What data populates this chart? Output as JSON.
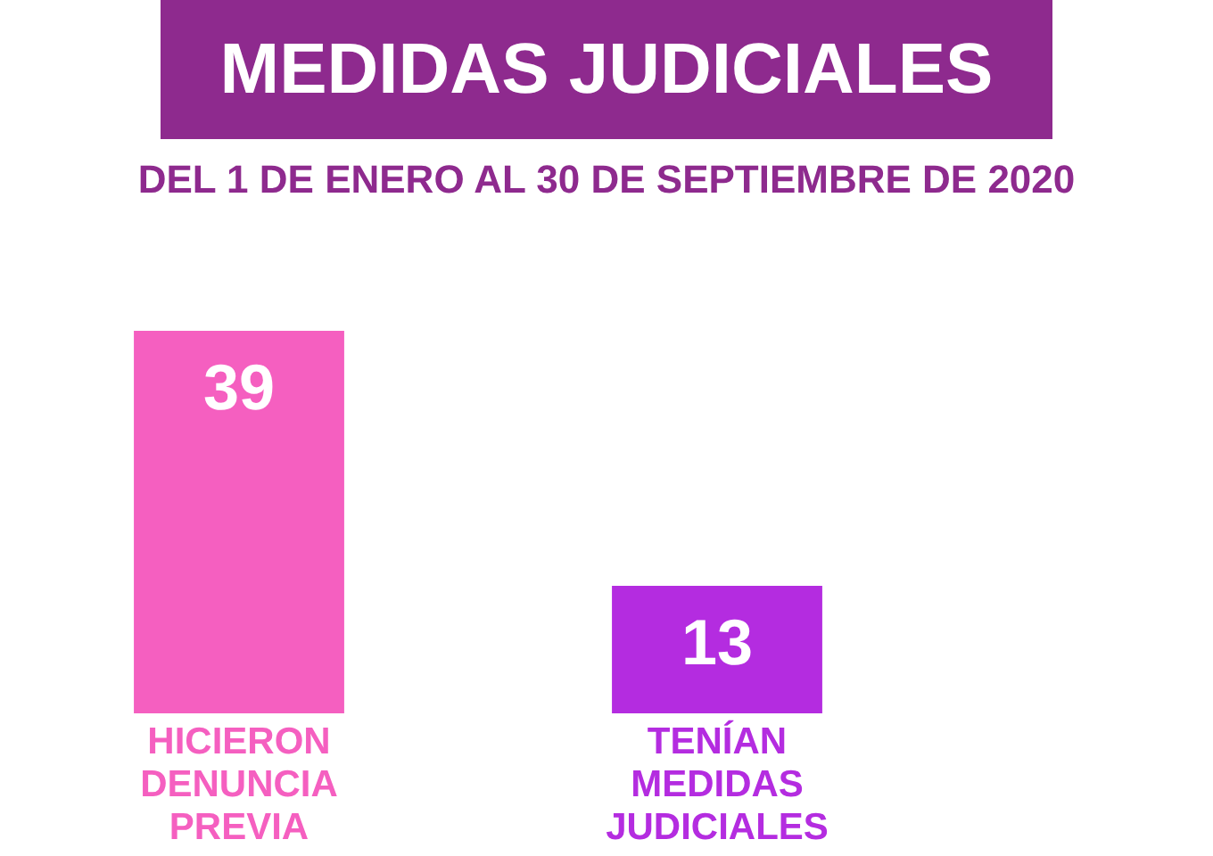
{
  "chart_data": {
    "type": "bar",
    "title": "MEDIDAS JUDICIALES",
    "subtitle": "DEL 1 DE ENERO AL 30 DE SEPTIEMBRE DE 2020",
    "categories": [
      "HICIERON DENUNCIA PREVIA",
      "TENÍAN MEDIDAS JUDICIALES"
    ],
    "values": [
      39,
      13
    ],
    "colors": [
      "#f55fc0",
      "#b42ce0"
    ],
    "data_labels": true,
    "grid": false,
    "legend": false,
    "tick_labels": false
  }
}
